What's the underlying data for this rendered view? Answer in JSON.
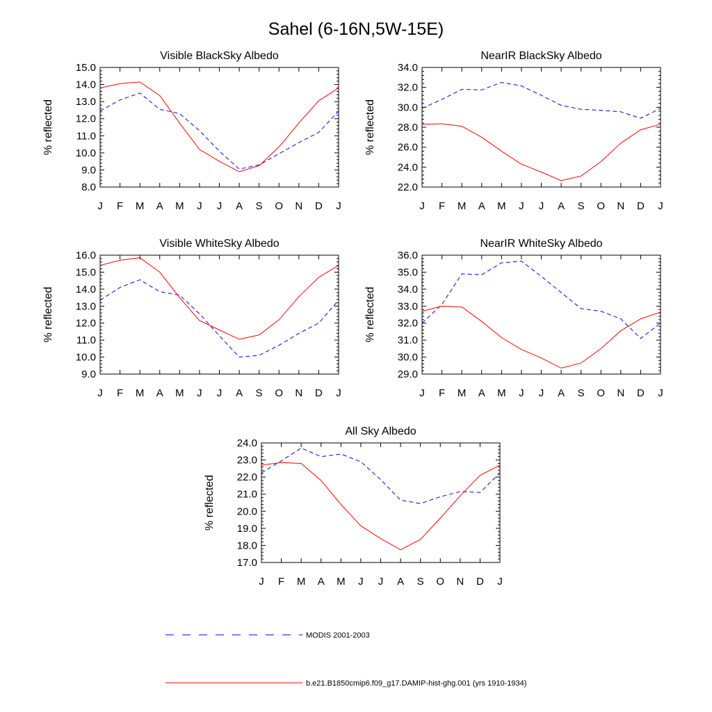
{
  "figure": {
    "title": "Sahel (6-16N,5W-15E)",
    "legend": [
      {
        "label": "MODIS 2001-2003",
        "color": "#0000ff",
        "style": "dashed"
      },
      {
        "label": "b.e21.B1850cmip6.f09_g17.DAMIP-hist-ghg.001 (yrs 1910-1934)",
        "color": "#ff0000",
        "style": "solid"
      }
    ]
  },
  "chart_data": [
    {
      "type": "line",
      "title": "Visible BlackSky Albedo",
      "ylabel": "% reflected",
      "categories": [
        "J",
        "F",
        "M",
        "A",
        "M",
        "J",
        "J",
        "A",
        "S",
        "O",
        "N",
        "D",
        "J"
      ],
      "ylim": [
        8.0,
        15.0
      ],
      "yticks": [
        "8.0",
        "9.0",
        "10.0",
        "11.0",
        "12.0",
        "13.0",
        "14.0",
        "15.0"
      ],
      "series": [
        {
          "name": "MODIS 2001-2003",
          "color": "#0000ff",
          "dash": true,
          "values": [
            12.45,
            13.1,
            13.5,
            12.55,
            12.3,
            11.3,
            10.1,
            9.05,
            9.3,
            9.95,
            10.6,
            11.2,
            12.45
          ]
        },
        {
          "name": "b.e21.B1850cmip6.f09_g17.DAMIP-hist-ghg.001 (yrs 1910-1934)",
          "color": "#ff0000",
          "dash": false,
          "values": [
            13.8,
            14.05,
            14.15,
            13.35,
            11.75,
            10.2,
            9.5,
            8.9,
            9.25,
            10.35,
            11.75,
            13.05,
            13.8
          ]
        }
      ]
    },
    {
      "type": "line",
      "title": "NearIR BlackSky Albedo",
      "ylabel": "% reflected",
      "categories": [
        "J",
        "F",
        "M",
        "A",
        "M",
        "J",
        "J",
        "A",
        "S",
        "O",
        "N",
        "D",
        "J"
      ],
      "ylim": [
        22.0,
        34.0
      ],
      "yticks": [
        "22.0",
        "24.0",
        "26.0",
        "28.0",
        "30.0",
        "32.0",
        "34.0"
      ],
      "series": [
        {
          "name": "MODIS 2001-2003",
          "color": "#0000ff",
          "dash": true,
          "values": [
            29.9,
            30.8,
            31.8,
            31.75,
            32.5,
            32.15,
            31.2,
            30.2,
            29.8,
            29.7,
            29.55,
            28.9,
            29.9
          ]
        },
        {
          "name": "b.e21.B1850cmip6.f09_g17.DAMIP-hist-ghg.001 (yrs 1910-1934)",
          "color": "#ff0000",
          "dash": false,
          "values": [
            28.3,
            28.35,
            28.1,
            27.0,
            25.6,
            24.3,
            23.5,
            22.65,
            23.1,
            24.55,
            26.4,
            27.75,
            28.3
          ]
        }
      ]
    },
    {
      "type": "line",
      "title": "Visible WhiteSky Albedo",
      "ylabel": "% reflected",
      "categories": [
        "J",
        "F",
        "M",
        "A",
        "M",
        "J",
        "J",
        "A",
        "S",
        "O",
        "N",
        "D",
        "J"
      ],
      "ylim": [
        9.0,
        16.0
      ],
      "yticks": [
        "9.0",
        "10.0",
        "11.0",
        "12.0",
        "13.0",
        "14.0",
        "15.0",
        "16.0"
      ],
      "series": [
        {
          "name": "MODIS 2001-2003",
          "color": "#0000ff",
          "dash": true,
          "values": [
            13.35,
            14.1,
            14.55,
            13.85,
            13.65,
            12.55,
            11.25,
            10.0,
            10.1,
            10.7,
            11.4,
            12.0,
            13.35
          ]
        },
        {
          "name": "b.e21.B1850cmip6.f09_g17.DAMIP-hist-ghg.001 (yrs 1910-1934)",
          "color": "#ff0000",
          "dash": false,
          "values": [
            15.4,
            15.7,
            15.85,
            15.0,
            13.5,
            12.15,
            11.6,
            11.05,
            11.3,
            12.2,
            13.55,
            14.7,
            15.4
          ]
        }
      ]
    },
    {
      "type": "line",
      "title": "NearIR WhiteSky Albedo",
      "ylabel": "% reflected",
      "categories": [
        "J",
        "F",
        "M",
        "A",
        "M",
        "J",
        "J",
        "A",
        "S",
        "O",
        "N",
        "D",
        "J"
      ],
      "ylim": [
        29.0,
        36.0
      ],
      "yticks": [
        "29.0",
        "30.0",
        "31.0",
        "32.0",
        "33.0",
        "34.0",
        "35.0",
        "36.0"
      ],
      "series": [
        {
          "name": "MODIS 2001-2003",
          "color": "#0000ff",
          "dash": true,
          "values": [
            32.0,
            33.1,
            34.9,
            34.85,
            35.55,
            35.65,
            34.75,
            33.8,
            32.85,
            32.7,
            32.25,
            31.1,
            32.0
          ]
        },
        {
          "name": "b.e21.B1850cmip6.f09_g17.DAMIP-hist-ghg.001 (yrs 1910-1934)",
          "color": "#ff0000",
          "dash": false,
          "values": [
            32.7,
            33.0,
            32.95,
            32.1,
            31.15,
            30.45,
            29.95,
            29.35,
            29.65,
            30.5,
            31.55,
            32.25,
            32.65
          ]
        }
      ]
    },
    {
      "type": "line",
      "title": "All Sky Albedo",
      "ylabel": "% reflected",
      "categories": [
        "J",
        "F",
        "M",
        "A",
        "M",
        "J",
        "J",
        "A",
        "S",
        "O",
        "N",
        "D",
        "J"
      ],
      "ylim": [
        17.0,
        24.0
      ],
      "yticks": [
        "17.0",
        "18.0",
        "19.0",
        "20.0",
        "21.0",
        "22.0",
        "23.0",
        "24.0"
      ],
      "series": [
        {
          "name": "MODIS 2001-2003",
          "color": "#0000ff",
          "dash": true,
          "values": [
            22.25,
            22.95,
            23.7,
            23.2,
            23.35,
            22.9,
            21.85,
            20.65,
            20.45,
            20.85,
            21.15,
            21.1,
            22.25
          ]
        },
        {
          "name": "b.e21.B1850cmip6.f09_g17.DAMIP-hist-ghg.001 (yrs 1910-1934)",
          "color": "#ff0000",
          "dash": false,
          "values": [
            22.7,
            22.85,
            22.8,
            21.8,
            20.4,
            19.15,
            18.4,
            17.75,
            18.35,
            19.6,
            20.9,
            22.1,
            22.7
          ]
        }
      ]
    }
  ]
}
